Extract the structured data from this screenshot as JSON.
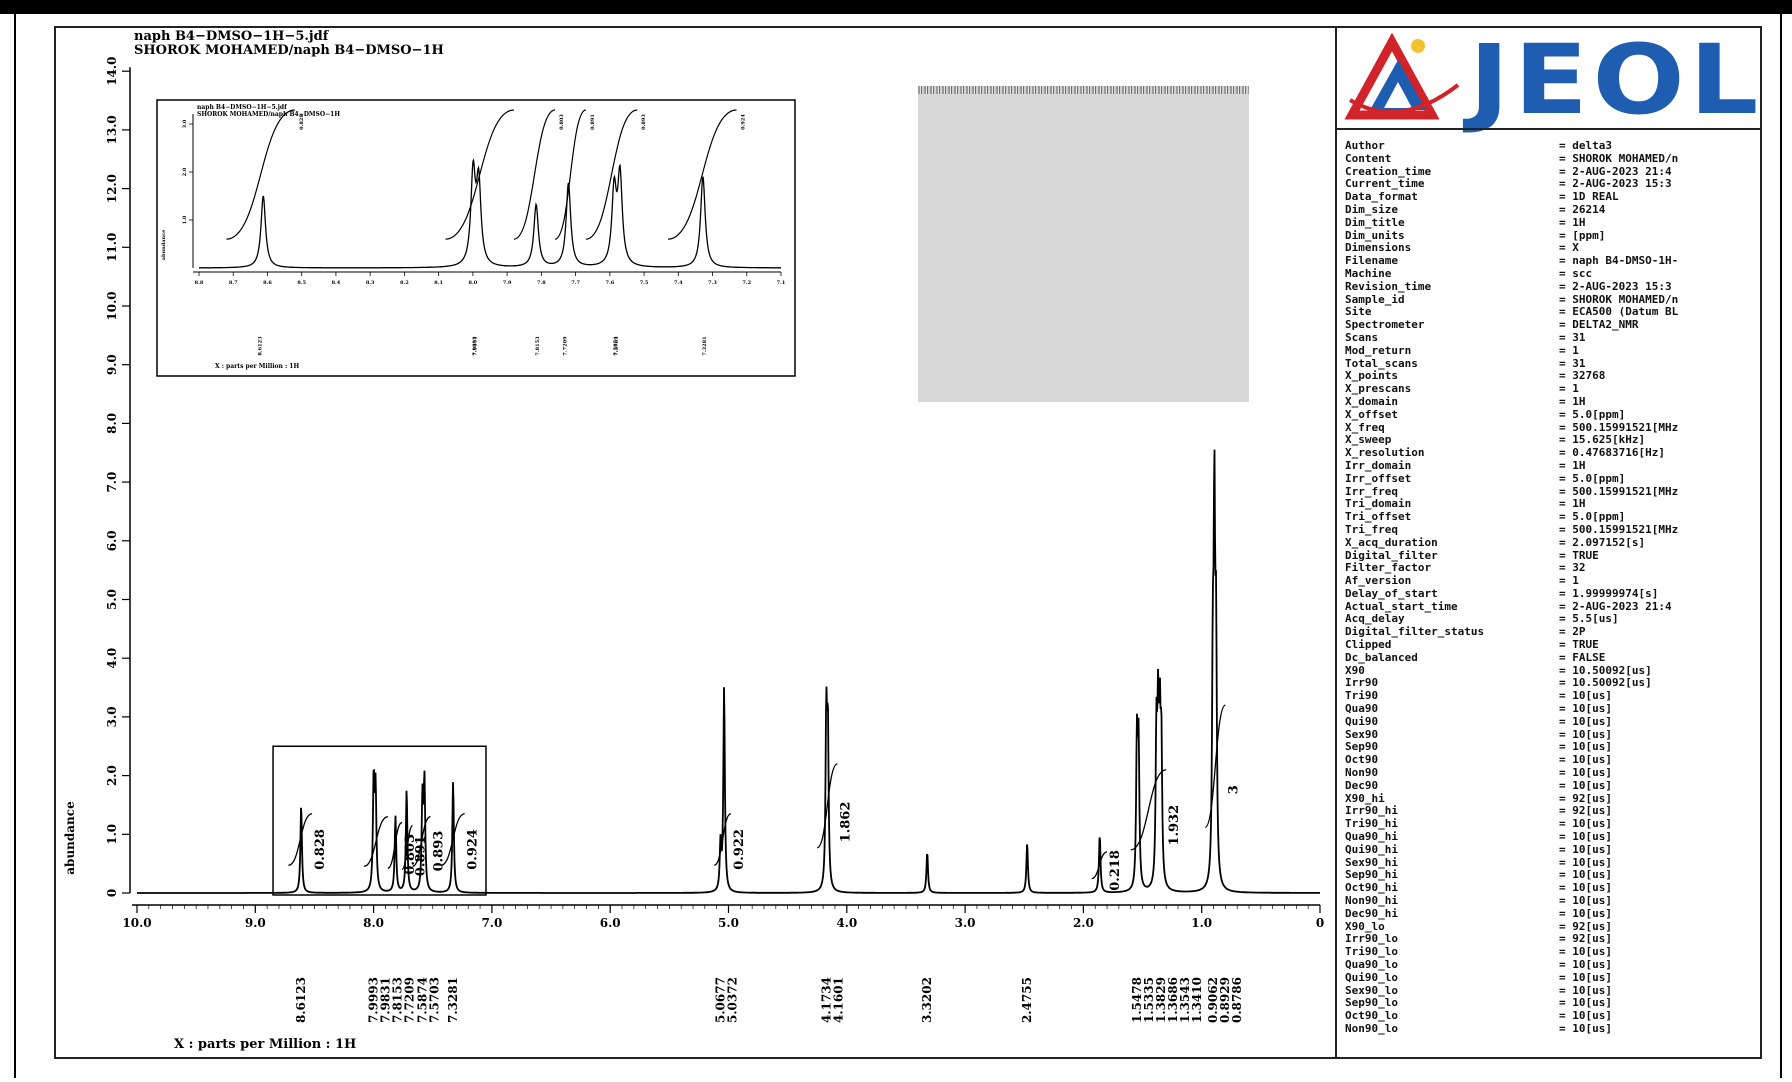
{
  "header": {
    "line1": "naph B4−DMSO−1H−5.jdf",
    "line2": "SHOROK MOHAMED/naph B4−DMSO−1H"
  },
  "logo": {
    "text": "JEOL",
    "colors": {
      "blue": "#1e5db0",
      "red": "#d0242a"
    }
  },
  "footer": {
    "xlabel": "X : parts per Million : 1H"
  },
  "parameters": [
    {
      "k": "Author",
      "v": "= delta3"
    },
    {
      "k": "Content",
      "v": "= SHOROK MOHAMED/n"
    },
    {
      "k": "Creation_time",
      "v": "=  2-AUG-2023 21:4"
    },
    {
      "k": "Current_time",
      "v": "=  2-AUG-2023 15:3"
    },
    {
      "k": "Data_format",
      "v": "= 1D REAL"
    },
    {
      "k": "Dim_size",
      "v": "= 26214"
    },
    {
      "k": "Dim_title",
      "v": "= 1H"
    },
    {
      "k": "Dim_units",
      "v": "= [ppm]"
    },
    {
      "k": "Dimensions",
      "v": "= X"
    },
    {
      "k": "Filename",
      "v": "= naph B4-DMSO-1H-"
    },
    {
      "k": "Machine",
      "v": "= scc"
    },
    {
      "k": "Revision_time",
      "v": "=  2-AUG-2023 15:3"
    },
    {
      "k": "Sample_id",
      "v": "= SHOROK MOHAMED/n"
    },
    {
      "k": "Site",
      "v": "= ECA500 (Datum BL"
    },
    {
      "k": "Spectrometer",
      "v": "= DELTA2_NMR"
    },
    {
      "k": "Scans",
      "v": "= 31"
    },
    {
      "k": "Mod_return",
      "v": "= 1"
    },
    {
      "k": "Total_scans",
      "v": "= 31"
    },
    {
      "k": "X_points",
      "v": "= 32768"
    },
    {
      "k": "X_prescans",
      "v": "= 1"
    },
    {
      "k": "X_domain",
      "v": "= 1H"
    },
    {
      "k": "X_offset",
      "v": "= 5.0[ppm]"
    },
    {
      "k": "X_freq",
      "v": "= 500.15991521[MHz"
    },
    {
      "k": "X_sweep",
      "v": "= 15.625[kHz]"
    },
    {
      "k": "X_resolution",
      "v": "= 0.47683716[Hz]"
    },
    {
      "k": "Irr_domain",
      "v": "= 1H"
    },
    {
      "k": "Irr_offset",
      "v": "= 5.0[ppm]"
    },
    {
      "k": "Irr_freq",
      "v": "= 500.15991521[MHz"
    },
    {
      "k": "Tri_domain",
      "v": "= 1H"
    },
    {
      "k": "Tri_offset",
      "v": "= 5.0[ppm]"
    },
    {
      "k": "Tri_freq",
      "v": "= 500.15991521[MHz"
    },
    {
      "k": "X_acq_duration",
      "v": "= 2.097152[s]"
    },
    {
      "k": "Digital_filter",
      "v": "= TRUE"
    },
    {
      "k": "Filter_factor",
      "v": "= 32"
    },
    {
      "k": "Af_version",
      "v": "= 1"
    },
    {
      "k": "Delay_of_start",
      "v": "= 1.99999974[s]"
    },
    {
      "k": "Actual_start_time",
      "v": "=  2-AUG-2023 21:4"
    },
    {
      "k": "Acq_delay",
      "v": "= 5.5[us]"
    },
    {
      "k": "Digital_filter_status",
      "v": "= 2P"
    },
    {
      "k": "Clipped",
      "v": "= TRUE"
    },
    {
      "k": "Dc_balanced",
      "v": "= FALSE"
    },
    {
      "k": "X90",
      "v": "= 10.50092[us]"
    },
    {
      "k": "Irr90",
      "v": "= 10.50092[us]"
    },
    {
      "k": "Tri90",
      "v": "= 10[us]"
    },
    {
      "k": "Qua90",
      "v": "= 10[us]"
    },
    {
      "k": "Qui90",
      "v": "= 10[us]"
    },
    {
      "k": "Sex90",
      "v": "= 10[us]"
    },
    {
      "k": "Sep90",
      "v": "= 10[us]"
    },
    {
      "k": "Oct90",
      "v": "= 10[us]"
    },
    {
      "k": "Non90",
      "v": "= 10[us]"
    },
    {
      "k": "Dec90",
      "v": "= 10[us]"
    },
    {
      "k": "X90_hi",
      "v": "= 92[us]"
    },
    {
      "k": "Irr90_hi",
      "v": "= 92[us]"
    },
    {
      "k": "Tri90_hi",
      "v": "= 10[us]"
    },
    {
      "k": "Qua90_hi",
      "v": "= 10[us]"
    },
    {
      "k": "Qui90_hi",
      "v": "= 10[us]"
    },
    {
      "k": "Sex90_hi",
      "v": "= 10[us]"
    },
    {
      "k": "Sep90_hi",
      "v": "= 10[us]"
    },
    {
      "k": "Oct90_hi",
      "v": "= 10[us]"
    },
    {
      "k": "Non90_hi",
      "v": "= 10[us]"
    },
    {
      "k": "Dec90_hi",
      "v": "= 10[us]"
    },
    {
      "k": "X90_lo",
      "v": "= 92[us]"
    },
    {
      "k": "Irr90_lo",
      "v": "= 92[us]"
    },
    {
      "k": "Tri90_lo",
      "v": "= 10[us]"
    },
    {
      "k": "Qua90_lo",
      "v": "= 10[us]"
    },
    {
      "k": "Qui90_lo",
      "v": "= 10[us]"
    },
    {
      "k": "Sex90_lo",
      "v": "= 10[us]"
    },
    {
      "k": "Sep90_lo",
      "v": "= 10[us]"
    },
    {
      "k": "Oct90_lo",
      "v": "= 10[us]"
    },
    {
      "k": "Non90_lo",
      "v": "= 10[us]"
    }
  ],
  "chart_data": {
    "type": "line",
    "xlabel": "X : parts per Million : 1H",
    "ylabel": "abundance",
    "x_reversed": true,
    "xlim": [
      10.0,
      0.0
    ],
    "ylim": [
      0.0,
      14.0
    ],
    "x_ticks": [
      "10.0",
      "9.0",
      "8.0",
      "7.0",
      "6.0",
      "5.0",
      "4.0",
      "3.0",
      "2.0",
      "1.0",
      "0"
    ],
    "x_tick_values": [
      10.0,
      9.0,
      8.0,
      7.0,
      6.0,
      5.0,
      4.0,
      3.0,
      2.0,
      1.0,
      0.0
    ],
    "y_ticks": [
      "0",
      "1.0",
      "2.0",
      "3.0",
      "4.0",
      "5.0",
      "6.0",
      "7.0",
      "8.0",
      "9.0",
      "10.0",
      "11.0",
      "12.0",
      "13.0",
      "14.0"
    ],
    "y_tick_values": [
      0,
      1,
      2,
      3,
      4,
      5,
      6,
      7,
      8,
      9,
      10,
      11,
      12,
      13,
      14
    ],
    "peaks": [
      {
        "ppm": 8.6123,
        "height": 1.5
      },
      {
        "ppm": 7.9993,
        "height": 1.9
      },
      {
        "ppm": 7.9831,
        "height": 1.7
      },
      {
        "ppm": 7.8153,
        "height": 1.3
      },
      {
        "ppm": 7.7209,
        "height": 1.75
      },
      {
        "ppm": 7.5874,
        "height": 1.55
      },
      {
        "ppm": 7.5703,
        "height": 1.85
      },
      {
        "ppm": 7.3281,
        "height": 1.9
      },
      {
        "ppm": 5.0677,
        "height": 0.8
      },
      {
        "ppm": 5.0372,
        "height": 3.5
      },
      {
        "ppm": 4.1734,
        "height": 2.9
      },
      {
        "ppm": 4.1601,
        "height": 2.6
      },
      {
        "ppm": 3.3202,
        "height": 0.7
      },
      {
        "ppm": 2.4755,
        "height": 0.85
      },
      {
        "ppm": 1.862,
        "height": 1.0
      },
      {
        "ppm": 1.5478,
        "height": 2.5
      },
      {
        "ppm": 1.5335,
        "height": 2.4
      },
      {
        "ppm": 1.3829,
        "height": 2.5
      },
      {
        "ppm": 1.3686,
        "height": 2.6
      },
      {
        "ppm": 1.3543,
        "height": 2.5
      },
      {
        "ppm": 1.341,
        "height": 2.3
      },
      {
        "ppm": 0.9062,
        "height": 3.4
      },
      {
        "ppm": 0.8929,
        "height": 6.0
      },
      {
        "ppm": 0.8786,
        "height": 3.9
      }
    ],
    "peak_labels": [
      {
        "ppm": 8.6123,
        "label": "8.6123"
      },
      {
        "ppm": 7.9993,
        "label": "7.9993"
      },
      {
        "ppm": 7.9831,
        "label": "7.9831"
      },
      {
        "ppm": 7.8153,
        "label": "7.8153"
      },
      {
        "ppm": 7.7209,
        "label": "7.7209"
      },
      {
        "ppm": 7.5874,
        "label": "7.5874"
      },
      {
        "ppm": 7.5703,
        "label": "7.5703"
      },
      {
        "ppm": 7.3281,
        "label": "7.3281"
      },
      {
        "ppm": 5.0677,
        "label": "5.0677"
      },
      {
        "ppm": 5.0372,
        "label": "5.0372"
      },
      {
        "ppm": 4.1734,
        "label": "4.1734"
      },
      {
        "ppm": 4.1601,
        "label": "4.1601"
      },
      {
        "ppm": 3.3202,
        "label": "3.3202"
      },
      {
        "ppm": 2.4755,
        "label": "2.4755"
      },
      {
        "ppm": 1.5478,
        "label": "1.5478"
      },
      {
        "ppm": 1.5335,
        "label": "1.5335"
      },
      {
        "ppm": 1.3829,
        "label": "1.3829"
      },
      {
        "ppm": 1.3686,
        "label": "1.3686"
      },
      {
        "ppm": 1.3543,
        "label": "1.3543"
      },
      {
        "ppm": 1.341,
        "label": "1.3410"
      },
      {
        "ppm": 0.9062,
        "label": "0.9062"
      },
      {
        "ppm": 0.8929,
        "label": "0.8929"
      },
      {
        "ppm": 0.8786,
        "label": "0.8786"
      }
    ],
    "integrals": [
      {
        "from": 8.72,
        "to": 8.52,
        "level": 1.35,
        "label": "0.828"
      },
      {
        "from": 8.08,
        "to": 7.88,
        "level": 1.3,
        "label": ""
      },
      {
        "from": 7.88,
        "to": 7.76,
        "level": 1.2,
        "label": "0.803"
      },
      {
        "from": 7.76,
        "to": 7.67,
        "level": 1.15,
        "label": "0.891"
      },
      {
        "from": 7.67,
        "to": 7.52,
        "level": 1.3,
        "label": "0.893"
      },
      {
        "from": 7.43,
        "to": 7.23,
        "level": 1.35,
        "label": "0.924"
      },
      {
        "from": 5.12,
        "to": 4.98,
        "level": 1.35,
        "label": "0.922"
      },
      {
        "from": 4.25,
        "to": 4.08,
        "level": 2.2,
        "label": "1.862"
      },
      {
        "from": 1.93,
        "to": 1.8,
        "level": 0.7,
        "label": "0.218"
      },
      {
        "from": 1.6,
        "to": 1.3,
        "level": 2.1,
        "label": "1.932"
      },
      {
        "from": 0.97,
        "to": 0.8,
        "level": 3.2,
        "label": "3"
      }
    ],
    "zoom_region": {
      "from": 8.85,
      "to": 7.05,
      "ymax": 2.5
    },
    "inset": {
      "xlim": [
        8.7,
        7.1
      ],
      "x_ticks": [
        "8.8",
        "8.7",
        "8.6",
        "8.5",
        "8.4",
        "8.3",
        "8.2",
        "8.1",
        "8.0",
        "7.9",
        "7.8",
        "7.7",
        "7.6",
        "7.5",
        "7.4",
        "7.3",
        "7.2",
        "7.1"
      ],
      "x_tick_values": [
        8.8,
        8.7,
        8.6,
        8.5,
        8.4,
        8.3,
        8.2,
        8.1,
        8.0,
        7.9,
        7.8,
        7.7,
        7.6,
        7.5,
        7.4,
        7.3,
        7.2,
        7.1
      ],
      "y_ticks": [
        "1.0",
        "2.0",
        "3.0"
      ],
      "ylabel": "abundance",
      "title1": "naph B4−DMSO−1H−5.jdf",
      "title2": "SHOROK MOHAMED/naph B4−DMSO−1H",
      "xlabel": "X : parts per Million : 1H"
    }
  }
}
